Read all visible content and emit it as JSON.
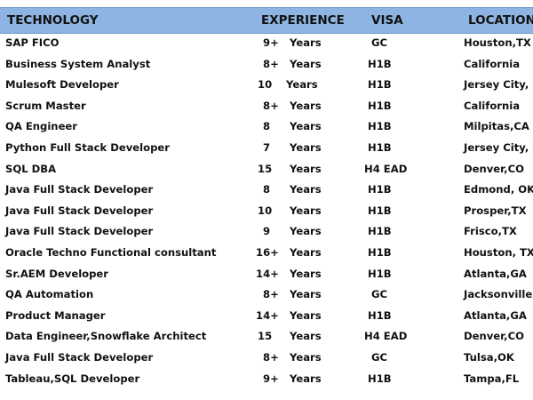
{
  "header": {
    "technology": "TECHNOLOGY",
    "experience": "EXPERIENCE",
    "visa": "VISA",
    "location": "LOCATION"
  },
  "rows": [
    {
      "technology": "SAP FICO",
      "years": "9+",
      "unit": "Years",
      "visa": "GC",
      "location": "Houston,TX"
    },
    {
      "technology": "Business System Analyst",
      "years": "8+",
      "unit": "Years",
      "visa": "H1B",
      "location": "California"
    },
    {
      "technology": "Mulesoft Developer",
      "years": "10",
      "unit": "Years",
      "visa": "H1B",
      "location": "Jersey City, NJ"
    },
    {
      "technology": "Scrum Master",
      "years": "8+",
      "unit": "Years",
      "visa": "H1B",
      "location": "California"
    },
    {
      "technology": "QA Engineer",
      "years": "8",
      "unit": "Years",
      "visa": "H1B",
      "location": "Milpitas,CA"
    },
    {
      "technology": "Python Full Stack Developer",
      "years": "7",
      "unit": "Years",
      "visa": "H1B",
      "location": "Jersey City, NJ"
    },
    {
      "technology": "SQL DBA",
      "years": "15",
      "unit": "Years",
      "visa": "H4 EAD",
      "location": "Denver,CO"
    },
    {
      "technology": "Java Full Stack Developer",
      "years": "8",
      "unit": "Years",
      "visa": "H1B",
      "location": "Edmond, OK"
    },
    {
      "technology": "Java Full Stack Developer",
      "years": "10",
      "unit": "Years",
      "visa": "H1B",
      "location": "Prosper,TX"
    },
    {
      "technology": "Java Full Stack Developer",
      "years": "9",
      "unit": "Years",
      "visa": "H1B",
      "location": "Frisco,TX"
    },
    {
      "technology": "Oracle Techno Functional consultant",
      "years": "16+",
      "unit": "Years",
      "visa": "H1B",
      "location": "Houston, TX"
    },
    {
      "technology": "Sr.AEM Developer",
      "years": "14+",
      "unit": "Years",
      "visa": "H1B",
      "location": "Atlanta,GA"
    },
    {
      "technology": "QA Automation",
      "years": "8+",
      "unit": "Years",
      "visa": "GC",
      "location": "Jacksonville, FL"
    },
    {
      "technology": "Product Manager",
      "years": "14+",
      "unit": "Years",
      "visa": "H1B",
      "location": "Atlanta,GA"
    },
    {
      "technology": "Data Engineer,Snowflake Architect",
      "years": "15",
      "unit": "Years",
      "visa": "H4 EAD",
      "location": "Denver,CO"
    },
    {
      "technology": "Java Full Stack Developer",
      "years": "8+",
      "unit": "Years",
      "visa": "GC",
      "location": "Tulsa,OK"
    },
    {
      "technology": "Tableau,SQL Developer",
      "years": "9+",
      "unit": "Years",
      "visa": "H1B",
      "location": "Tampa,FL"
    }
  ],
  "colors": {
    "header_bg": "#8db4e2",
    "text": "#111111"
  }
}
